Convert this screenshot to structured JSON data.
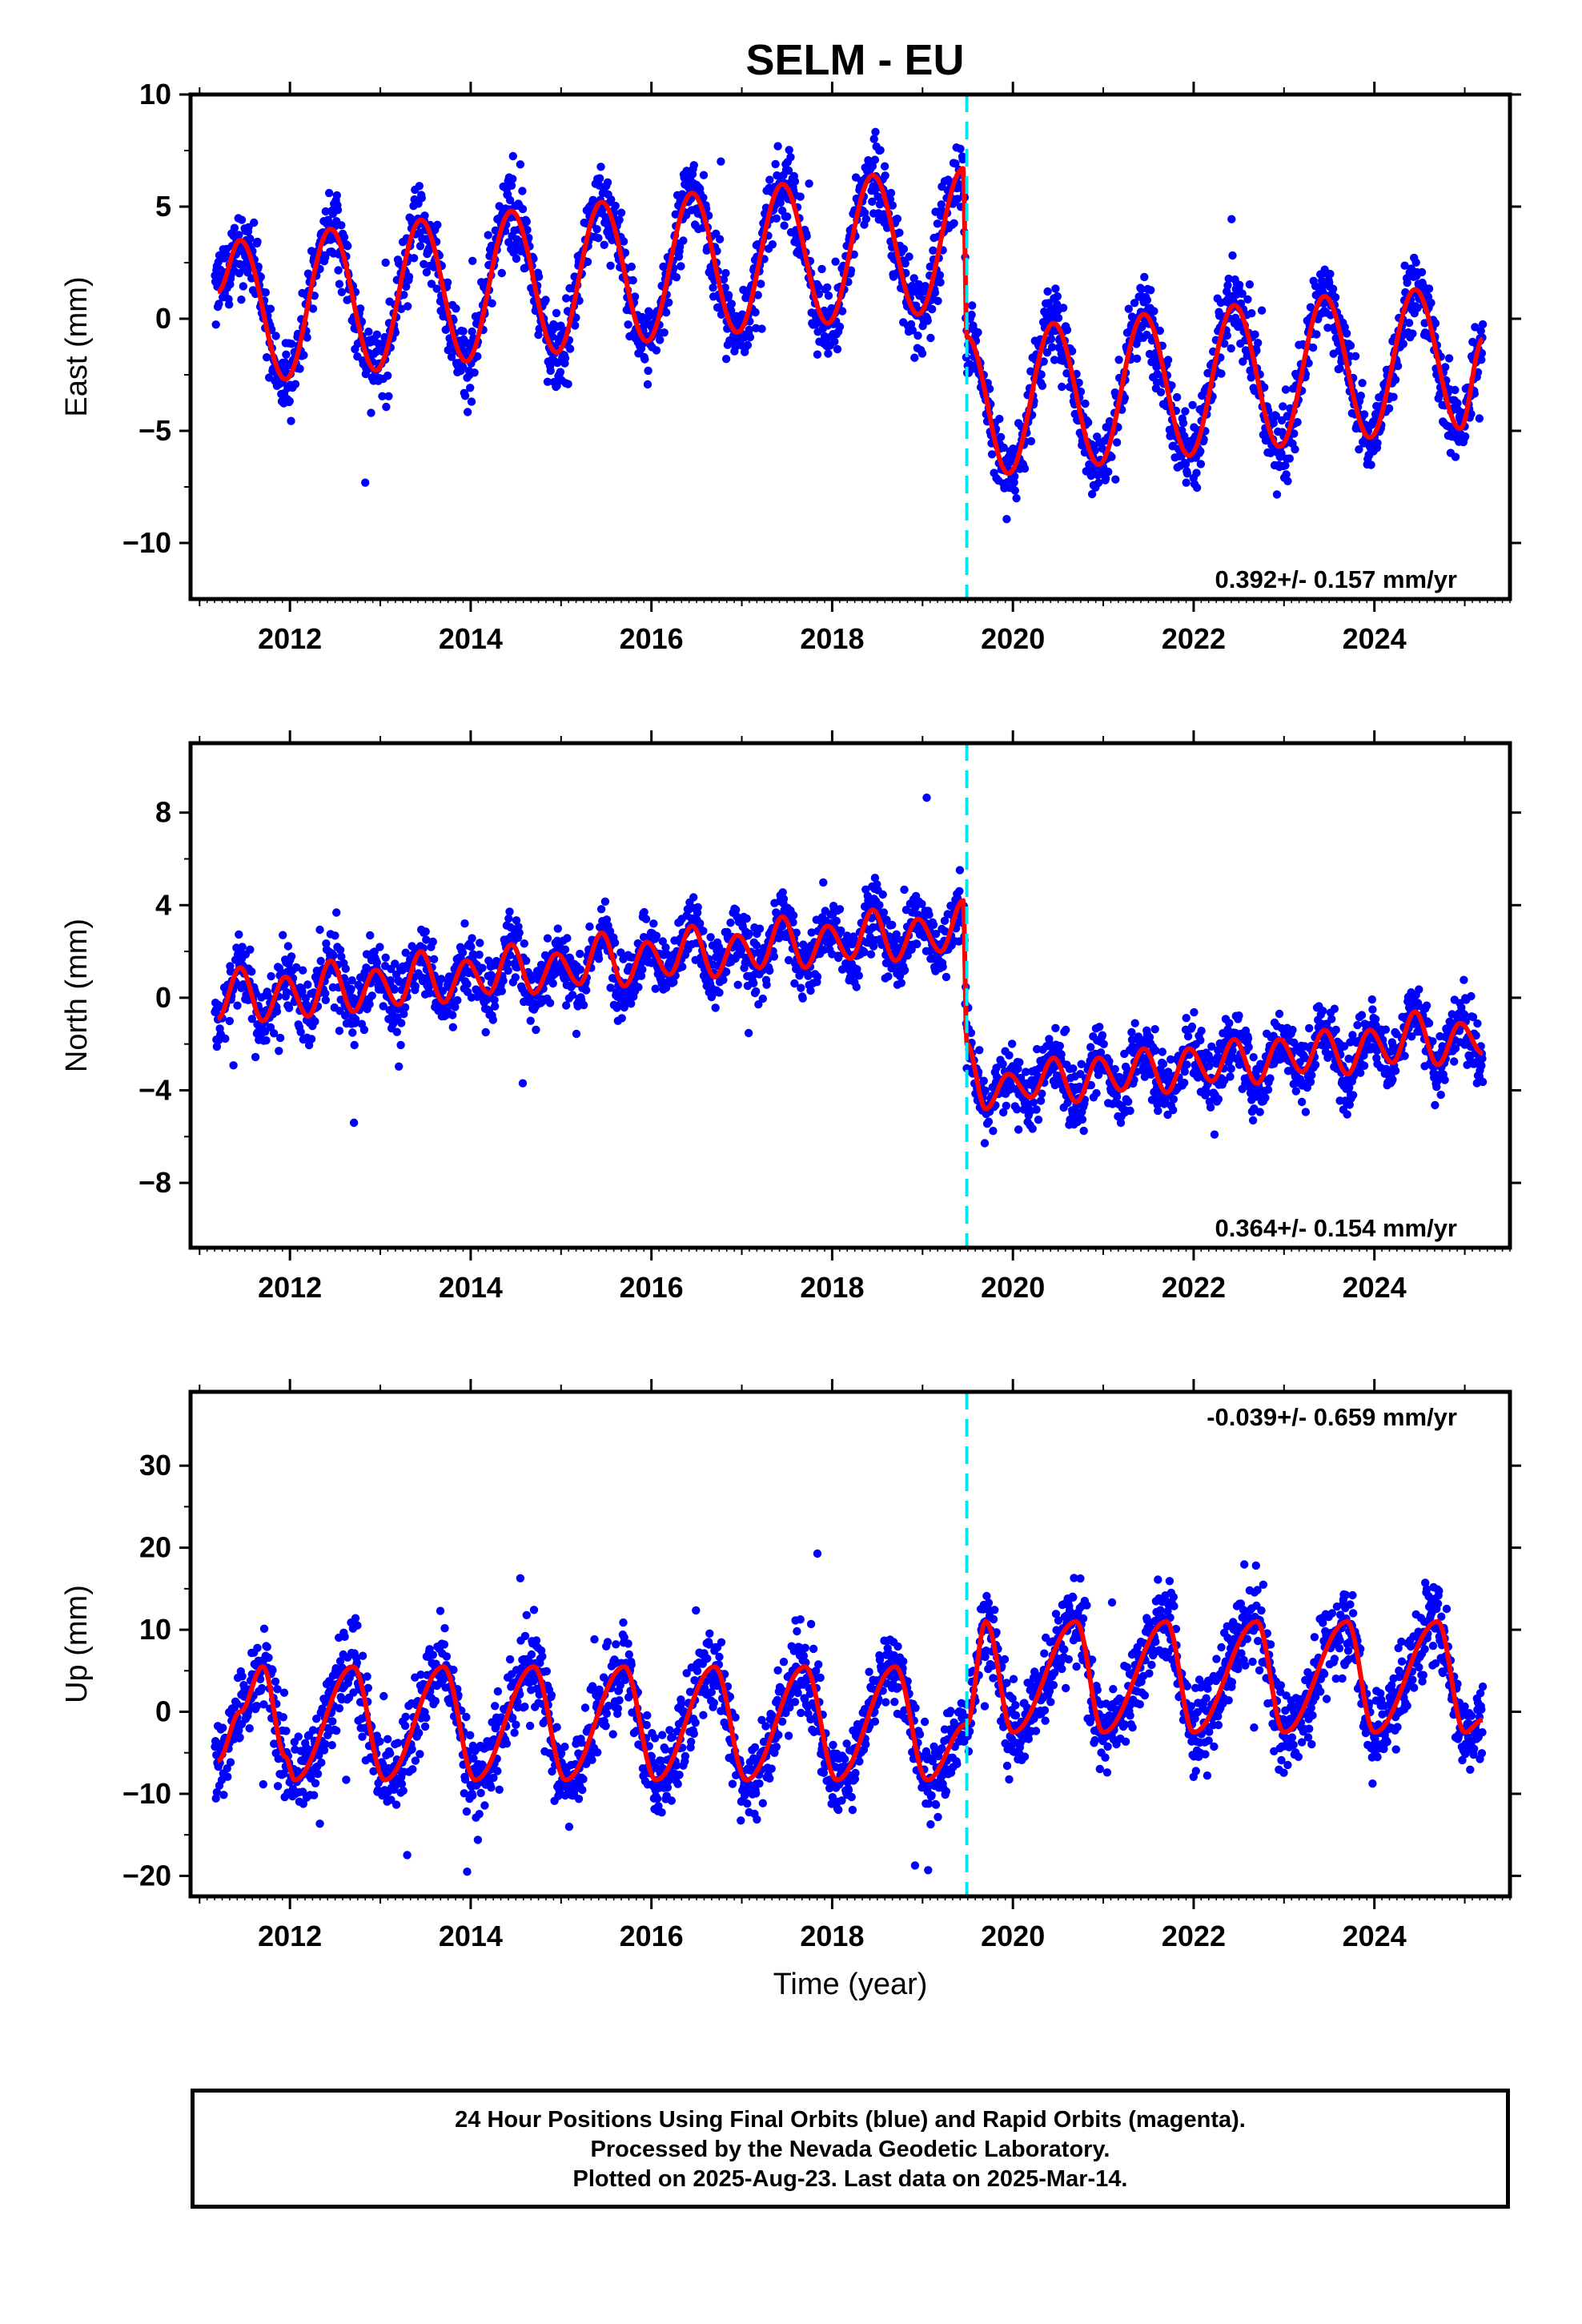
{
  "title": "SELM - EU",
  "colors": {
    "points": "#0000ff",
    "model": "#ff0000",
    "offset_line": "#00e5ee",
    "axes": "#000000"
  },
  "chart_data": [
    {
      "type": "scatter",
      "panel": "east",
      "ylabel": "East (mm)",
      "xlabel": "",
      "xlim": [
        2010.9,
        2025.5
      ],
      "ylim": [
        -12.5,
        10
      ],
      "yticks": [
        10,
        5,
        0,
        -5,
        -10
      ],
      "ytick_labels": [
        "10",
        "5",
        "0",
        "−5",
        "−10"
      ],
      "xticks": [
        2012,
        2014,
        2016,
        2018,
        2020,
        2022,
        2024
      ],
      "xtick_labels": [
        "2012",
        "2014",
        "2016",
        "2018",
        "2020",
        "2022",
        "2024"
      ],
      "rate_text": "0.392+/- 0.157 mm/yr",
      "rate_position": "bottom-right",
      "offset_epoch": 2019.49,
      "data_start": 2011.17,
      "data_end": 2025.2,
      "series": [
        {
          "kind": "model",
          "x": [
            2011.2,
            2011.45,
            2011.95,
            2012.45,
            2012.95,
            2013.45,
            2013.95,
            2014.45,
            2014.95,
            2015.45,
            2015.95,
            2016.45,
            2016.95,
            2017.45,
            2017.95,
            2018.45,
            2018.95,
            2019.45,
            2019.49,
            2019.95,
            2020.45,
            2020.95,
            2021.45,
            2021.95,
            2022.45,
            2022.95,
            2023.45,
            2023.95,
            2024.45,
            2024.95,
            2025.2
          ],
          "y": [
            1.2,
            3.5,
            -2.7,
            4.0,
            -2.3,
            4.4,
            -1.9,
            4.8,
            -1.5,
            5.2,
            -1.0,
            5.6,
            -0.6,
            6.0,
            -0.2,
            6.4,
            0.2,
            6.7,
            -0.8,
            -6.9,
            -0.2,
            -6.5,
            0.2,
            -6.1,
            0.6,
            -5.7,
            1.0,
            -5.3,
            1.3,
            -4.9,
            -0.9
          ]
        }
      ]
    },
    {
      "type": "scatter",
      "panel": "north",
      "ylabel": "North (mm)",
      "xlabel": "",
      "xlim": [
        2010.9,
        2025.5
      ],
      "ylim": [
        -10.8,
        11
      ],
      "yticks": [
        8,
        4,
        0,
        -4,
        -8
      ],
      "ytick_labels": [
        "8",
        "4",
        "0",
        "−4",
        "−8"
      ],
      "xticks": [
        2012,
        2014,
        2016,
        2018,
        2020,
        2022,
        2024
      ],
      "xtick_labels": [
        "2012",
        "2014",
        "2016",
        "2018",
        "2020",
        "2022",
        "2024"
      ],
      "rate_text": "0.364+/- 0.154 mm/yr",
      "rate_position": "bottom-right",
      "offset_epoch": 2019.49,
      "data_start": 2011.17,
      "data_end": 2025.2,
      "series": [
        {
          "kind": "model",
          "x": [
            2011.2,
            2011.45,
            2011.7,
            2011.95,
            2012.2,
            2012.45,
            2012.7,
            2012.95,
            2013.2,
            2013.45,
            2013.7,
            2013.95,
            2014.2,
            2014.45,
            2014.7,
            2014.95,
            2015.2,
            2015.45,
            2015.7,
            2015.95,
            2016.2,
            2016.45,
            2016.7,
            2016.95,
            2017.2,
            2017.45,
            2017.7,
            2017.95,
            2018.2,
            2018.45,
            2018.7,
            2018.95,
            2019.2,
            2019.45,
            2019.49,
            2019.7,
            2019.95,
            2020.2,
            2020.45,
            2020.7,
            2020.95,
            2021.2,
            2021.45,
            2021.7,
            2021.95,
            2022.2,
            2022.45,
            2022.7,
            2022.95,
            2023.2,
            2023.45,
            2023.7,
            2023.95,
            2024.2,
            2024.45,
            2024.7,
            2024.95,
            2025.2
          ],
          "y": [
            -0.9,
            1.3,
            -1.0,
            0.9,
            -0.8,
            1.6,
            -0.6,
            1.2,
            -0.3,
            2.0,
            -0.2,
            1.6,
            0.2,
            2.3,
            0.2,
            1.9,
            0.6,
            2.8,
            0.5,
            2.4,
            1.0,
            3.1,
            0.9,
            2.7,
            1.3,
            3.5,
            1.3,
            3.1,
            1.7,
            3.8,
            1.6,
            3.4,
            2.0,
            4.2,
            -2.0,
            -4.8,
            -3.3,
            -4.3,
            -2.6,
            -4.5,
            -2.6,
            -4.0,
            -2.2,
            -4.1,
            -2.2,
            -3.6,
            -1.8,
            -3.7,
            -1.8,
            -3.2,
            -1.4,
            -3.3,
            -1.4,
            -2.8,
            -0.6,
            -2.9,
            -1.1,
            -2.4
          ]
        }
      ]
    },
    {
      "type": "scatter",
      "panel": "up",
      "ylabel": "Up (mm)",
      "xlabel": "Time (year)",
      "xlim": [
        2010.9,
        2025.5
      ],
      "ylim": [
        -22.5,
        39
      ],
      "yticks": [
        30,
        20,
        10,
        0,
        -10,
        -20
      ],
      "ytick_labels": [
        "30",
        "20",
        "10",
        "0",
        "−10",
        "−20"
      ],
      "xticks": [
        2012,
        2014,
        2016,
        2018,
        2020,
        2022,
        2024
      ],
      "xtick_labels": [
        "2012",
        "2014",
        "2016",
        "2018",
        "2020",
        "2022",
        "2024"
      ],
      "rate_text": "-0.039+/- 0.659 mm/yr",
      "rate_position": "top-right",
      "offset_epoch": 2019.49,
      "data_start": 2011.17,
      "data_end": 2025.2,
      "series": [
        {
          "kind": "model",
          "x": [
            2011.2,
            2011.45,
            2011.7,
            2011.95,
            2012.05,
            2012.7,
            2013.05,
            2013.7,
            2014.05,
            2014.7,
            2015.05,
            2015.7,
            2016.05,
            2016.7,
            2017.05,
            2017.7,
            2018.05,
            2018.7,
            2019.05,
            2019.49,
            2019.7,
            2020.0,
            2020.7,
            2021.0,
            2021.7,
            2022.0,
            2022.7,
            2023.0,
            2023.7,
            2024.0,
            2024.7,
            2025.0,
            2025.2
          ],
          "y": [
            -6.0,
            0.0,
            5.5,
            -5.5,
            -8.3,
            5.5,
            -8.3,
            5.5,
            -8.3,
            5.5,
            -8.3,
            5.5,
            -8.3,
            5.5,
            -8.3,
            5.5,
            -8.3,
            5.5,
            -8.3,
            -1.5,
            11.0,
            -2.5,
            11.0,
            -2.5,
            11.0,
            -2.5,
            11.0,
            -2.5,
            11.0,
            -2.5,
            11.0,
            -2.5,
            -1.0
          ]
        }
      ]
    }
  ],
  "footer": {
    "line1": "24 Hour Positions Using Final Orbits (blue) and Rapid Orbits (magenta).",
    "line2": "Processed by the Nevada Geodetic Laboratory.",
    "line3": "Plotted on 2025-Aug-23. Last data on 2025-Mar-14."
  }
}
